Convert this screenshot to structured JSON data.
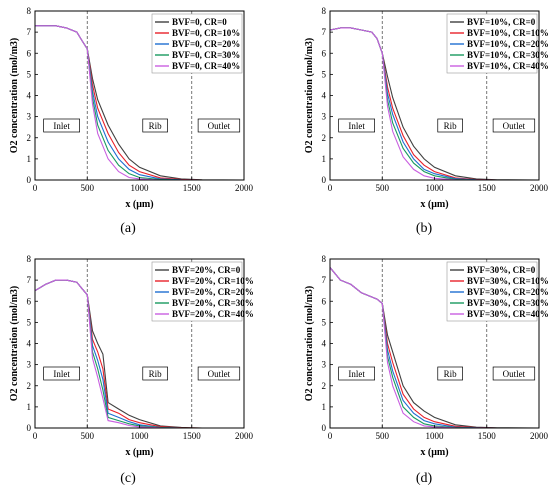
{
  "colors": [
    "#404040",
    "#e8212b",
    "#1f6fd1",
    "#1a9a5f",
    "#c95fe0"
  ],
  "region_labels": [
    "Inlet",
    "Rib",
    "Outlet"
  ],
  "chart_data": [
    {
      "type": "line",
      "panel_label": "(a)",
      "xlabel": "x (μm)",
      "ylabel": "O2 concentration (mol/m3)",
      "xlim": [
        0,
        2000
      ],
      "ylim": [
        0,
        8
      ],
      "xticks": [
        0,
        500,
        1000,
        1500,
        2000
      ],
      "yticks": [
        0,
        1,
        2,
        3,
        4,
        5,
        6,
        7,
        8
      ],
      "vlines": [
        500,
        1500
      ],
      "legend": "top-right",
      "series": [
        {
          "name": "BVF=0, CR=0",
          "x": [
            0,
            100,
            200,
            300,
            400,
            450,
            500,
            550,
            600,
            700,
            800,
            900,
            1000,
            1200,
            1400,
            1600,
            2000
          ],
          "y": [
            7.3,
            7.3,
            7.3,
            7.2,
            7.0,
            6.6,
            6.2,
            4.8,
            3.8,
            2.6,
            1.7,
            1.0,
            0.6,
            0.2,
            0.05,
            0.01,
            0.0
          ]
        },
        {
          "name": "BVF=0, CR=10%",
          "x": [
            0,
            100,
            200,
            300,
            400,
            450,
            500,
            550,
            600,
            700,
            800,
            900,
            1000,
            1200,
            1400,
            1600,
            2000
          ],
          "y": [
            7.3,
            7.3,
            7.3,
            7.2,
            7.0,
            6.6,
            6.2,
            4.5,
            3.4,
            2.2,
            1.3,
            0.7,
            0.4,
            0.1,
            0.03,
            0.0,
            0.0
          ]
        },
        {
          "name": "BVF=0, CR=20%",
          "x": [
            0,
            100,
            200,
            300,
            400,
            450,
            500,
            550,
            600,
            700,
            800,
            900,
            1000,
            1200,
            1400,
            1600,
            2000
          ],
          "y": [
            7.3,
            7.3,
            7.3,
            7.2,
            7.0,
            6.6,
            6.2,
            4.2,
            3.0,
            1.8,
            1.0,
            0.5,
            0.25,
            0.05,
            0.01,
            0.0,
            0.0
          ]
        },
        {
          "name": "BVF=0, CR=30%",
          "x": [
            0,
            100,
            200,
            300,
            400,
            450,
            500,
            550,
            600,
            700,
            800,
            900,
            1000,
            1200,
            1400,
            1600,
            2000
          ],
          "y": [
            7.3,
            7.3,
            7.3,
            7.2,
            7.0,
            6.6,
            6.2,
            3.9,
            2.6,
            1.4,
            0.7,
            0.3,
            0.12,
            0.02,
            0.0,
            0.0,
            0.0
          ]
        },
        {
          "name": "BVF=0, CR=40%",
          "x": [
            0,
            100,
            200,
            300,
            400,
            450,
            500,
            550,
            600,
            700,
            800,
            900,
            1000,
            1200,
            1400,
            1600,
            2000
          ],
          "y": [
            7.3,
            7.3,
            7.3,
            7.2,
            7.0,
            6.6,
            6.2,
            3.6,
            2.2,
            1.0,
            0.4,
            0.12,
            0.05,
            0.0,
            0.0,
            0.0,
            0.0
          ]
        }
      ]
    },
    {
      "type": "line",
      "panel_label": "(b)",
      "xlabel": "x (μm)",
      "ylabel": "O2 concentration (mol/m3)",
      "xlim": [
        0,
        2000
      ],
      "ylim": [
        0,
        8
      ],
      "xticks": [
        0,
        500,
        1000,
        1500,
        2000
      ],
      "yticks": [
        0,
        1,
        2,
        3,
        4,
        5,
        6,
        7,
        8
      ],
      "vlines": [
        500,
        1500
      ],
      "legend": "top-right",
      "series": [
        {
          "name": "BVF=10%, CR=0",
          "x": [
            0,
            100,
            200,
            300,
            400,
            450,
            500,
            550,
            600,
            700,
            800,
            900,
            1000,
            1200,
            1400,
            1600,
            2000
          ],
          "y": [
            7.1,
            7.2,
            7.2,
            7.1,
            7.0,
            6.7,
            6.0,
            4.9,
            3.9,
            2.5,
            1.6,
            1.0,
            0.6,
            0.2,
            0.05,
            0.01,
            0.0
          ]
        },
        {
          "name": "BVF=10%, CR=10%",
          "x": [
            0,
            100,
            200,
            300,
            400,
            450,
            500,
            550,
            600,
            700,
            800,
            900,
            1000,
            1200,
            1400,
            1600,
            2000
          ],
          "y": [
            7.1,
            7.2,
            7.2,
            7.1,
            7.0,
            6.7,
            6.0,
            4.4,
            3.4,
            2.1,
            1.2,
            0.7,
            0.4,
            0.1,
            0.02,
            0.0,
            0.0
          ]
        },
        {
          "name": "BVF=10%, CR=20%",
          "x": [
            0,
            100,
            200,
            300,
            400,
            450,
            500,
            550,
            600,
            700,
            800,
            900,
            1000,
            1200,
            1400,
            1600,
            2000
          ],
          "y": [
            7.1,
            7.2,
            7.2,
            7.1,
            7.0,
            6.7,
            6.0,
            4.1,
            3.1,
            1.8,
            1.0,
            0.5,
            0.3,
            0.06,
            0.01,
            0.0,
            0.0
          ]
        },
        {
          "name": "BVF=10%, CR=30%",
          "x": [
            0,
            100,
            200,
            300,
            400,
            450,
            500,
            550,
            600,
            700,
            800,
            900,
            1000,
            1200,
            1400,
            1600,
            2000
          ],
          "y": [
            7.1,
            7.2,
            7.2,
            7.1,
            7.0,
            6.7,
            6.0,
            3.8,
            2.7,
            1.5,
            0.8,
            0.4,
            0.2,
            0.03,
            0.0,
            0.0,
            0.0
          ]
        },
        {
          "name": "BVF=10%, CR=40%",
          "x": [
            0,
            100,
            200,
            300,
            400,
            450,
            500,
            550,
            600,
            700,
            800,
            900,
            1000,
            1200,
            1400,
            1600,
            2000
          ],
          "y": [
            7.1,
            7.2,
            7.2,
            7.1,
            7.0,
            6.7,
            6.0,
            3.5,
            2.3,
            1.1,
            0.5,
            0.2,
            0.08,
            0.01,
            0.0,
            0.0,
            0.0
          ]
        }
      ]
    },
    {
      "type": "line",
      "panel_label": "(c)",
      "xlabel": "x (μm)",
      "ylabel": "O2 concentration (mol/m3)",
      "xlim": [
        0,
        2000
      ],
      "ylim": [
        0,
        8
      ],
      "xticks": [
        0,
        500,
        1000,
        1500,
        2000
      ],
      "yticks": [
        0,
        1,
        2,
        3,
        4,
        5,
        6,
        7,
        8
      ],
      "vlines": [
        500,
        1500
      ],
      "legend": "top-right",
      "series": [
        {
          "name": "BVF=20%, CR=0",
          "x": [
            0,
            100,
            200,
            300,
            400,
            450,
            500,
            550,
            600,
            650,
            700,
            800,
            900,
            1000,
            1200,
            1400,
            1600,
            2000
          ],
          "y": [
            6.5,
            6.8,
            7.0,
            7.0,
            6.9,
            6.6,
            6.3,
            4.6,
            4.0,
            3.5,
            1.2,
            0.9,
            0.6,
            0.4,
            0.1,
            0.03,
            0.0,
            0.0
          ]
        },
        {
          "name": "BVF=20%, CR=10%",
          "x": [
            0,
            100,
            200,
            300,
            400,
            450,
            500,
            550,
            600,
            650,
            700,
            800,
            900,
            1000,
            1200,
            1400,
            1600,
            2000
          ],
          "y": [
            6.5,
            6.8,
            7.0,
            7.0,
            6.9,
            6.6,
            6.3,
            4.2,
            3.6,
            2.8,
            0.9,
            0.7,
            0.4,
            0.25,
            0.06,
            0.01,
            0.0,
            0.0
          ]
        },
        {
          "name": "BVF=20%, CR=20%",
          "x": [
            0,
            100,
            200,
            300,
            400,
            450,
            500,
            550,
            600,
            650,
            700,
            800,
            900,
            1000,
            1200,
            1400,
            1600,
            2000
          ],
          "y": [
            6.5,
            6.8,
            7.0,
            7.0,
            6.9,
            6.6,
            6.3,
            3.9,
            3.2,
            2.3,
            0.7,
            0.5,
            0.3,
            0.15,
            0.03,
            0.0,
            0.0,
            0.0
          ]
        },
        {
          "name": "BVF=20%, CR=30%",
          "x": [
            0,
            100,
            200,
            300,
            400,
            450,
            500,
            550,
            600,
            650,
            700,
            800,
            900,
            1000,
            1200,
            1400,
            1600,
            2000
          ],
          "y": [
            6.5,
            6.8,
            7.0,
            7.0,
            6.9,
            6.6,
            6.3,
            3.6,
            2.8,
            1.8,
            0.5,
            0.35,
            0.2,
            0.1,
            0.02,
            0.0,
            0.0,
            0.0
          ]
        },
        {
          "name": "BVF=20%, CR=40%",
          "x": [
            0,
            100,
            200,
            300,
            400,
            450,
            500,
            550,
            600,
            650,
            700,
            800,
            900,
            1000,
            1200,
            1400,
            1600,
            2000
          ],
          "y": [
            6.5,
            6.8,
            7.0,
            7.0,
            6.9,
            6.6,
            6.3,
            3.3,
            2.4,
            1.4,
            0.35,
            0.25,
            0.12,
            0.05,
            0.01,
            0.0,
            0.0,
            0.0
          ]
        }
      ]
    },
    {
      "type": "line",
      "panel_label": "(d)",
      "xlabel": "x (μm)",
      "ylabel": "O2 concentration (mol/m3)",
      "xlim": [
        0,
        2000
      ],
      "ylim": [
        0,
        8
      ],
      "xticks": [
        0,
        500,
        1000,
        1500,
        2000
      ],
      "yticks": [
        0,
        1,
        2,
        3,
        4,
        5,
        6,
        7,
        8
      ],
      "vlines": [
        500,
        1500
      ],
      "legend": "top-right",
      "series": [
        {
          "name": "BVF=30%, CR=0",
          "x": [
            0,
            100,
            200,
            300,
            400,
            450,
            500,
            550,
            600,
            700,
            800,
            900,
            1000,
            1200,
            1400,
            1600,
            2000
          ],
          "y": [
            7.6,
            7.0,
            6.8,
            6.4,
            6.2,
            6.1,
            5.9,
            4.4,
            3.6,
            2.0,
            1.2,
            0.8,
            0.5,
            0.15,
            0.04,
            0.01,
            0.0
          ]
        },
        {
          "name": "BVF=30%, CR=10%",
          "x": [
            0,
            100,
            200,
            300,
            400,
            450,
            500,
            550,
            600,
            700,
            800,
            900,
            1000,
            1200,
            1400,
            1600,
            2000
          ],
          "y": [
            7.6,
            7.0,
            6.8,
            6.4,
            6.2,
            6.1,
            5.9,
            4.0,
            3.1,
            1.6,
            0.9,
            0.5,
            0.3,
            0.08,
            0.02,
            0.0,
            0.0
          ]
        },
        {
          "name": "BVF=30%, CR=20%",
          "x": [
            0,
            100,
            200,
            300,
            400,
            450,
            500,
            550,
            600,
            700,
            800,
            900,
            1000,
            1200,
            1400,
            1600,
            2000
          ],
          "y": [
            7.6,
            7.0,
            6.8,
            6.4,
            6.2,
            6.1,
            5.9,
            3.7,
            2.7,
            1.3,
            0.7,
            0.35,
            0.2,
            0.04,
            0.01,
            0.0,
            0.0
          ]
        },
        {
          "name": "BVF=30%, CR=30%",
          "x": [
            0,
            100,
            200,
            300,
            400,
            450,
            500,
            550,
            600,
            700,
            800,
            900,
            1000,
            1200,
            1400,
            1600,
            2000
          ],
          "y": [
            7.6,
            7.0,
            6.8,
            6.4,
            6.2,
            6.1,
            5.9,
            3.4,
            2.4,
            1.0,
            0.5,
            0.2,
            0.1,
            0.02,
            0.0,
            0.0,
            0.0
          ]
        },
        {
          "name": "BVF=30%, CR=40%",
          "x": [
            0,
            100,
            200,
            300,
            400,
            450,
            500,
            550,
            600,
            700,
            800,
            900,
            1000,
            1200,
            1400,
            1600,
            2000
          ],
          "y": [
            7.6,
            7.0,
            6.8,
            6.4,
            6.2,
            6.1,
            5.9,
            3.1,
            2.0,
            0.7,
            0.3,
            0.1,
            0.05,
            0.01,
            0.0,
            0.0,
            0.0
          ]
        }
      ]
    }
  ]
}
